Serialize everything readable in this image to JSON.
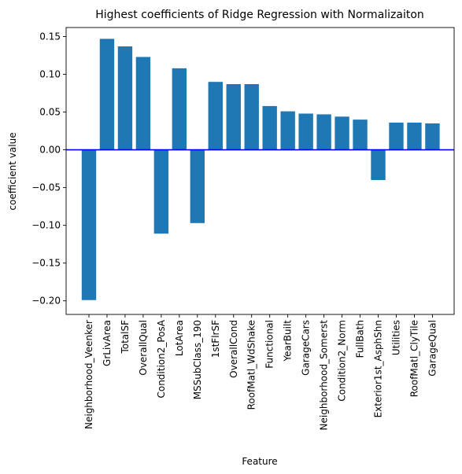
{
  "chart_data": {
    "type": "bar",
    "title": "Highest coefficients of Ridge Regression with Normalizaiton",
    "xlabel": "Feature",
    "ylabel": "coefficient value",
    "ylim": [
      -0.218,
      0.162
    ],
    "yticks": [
      -0.2,
      -0.15,
      -0.1,
      -0.05,
      0.0,
      0.05,
      0.1,
      0.15
    ],
    "ytick_labels": [
      "−0.20",
      "−0.15",
      "−0.10",
      "−0.05",
      "0.00",
      "0.05",
      "0.10",
      "0.15"
    ],
    "grid": false,
    "bar_color": "#1f77b4",
    "zero_line_color": "#0000ff",
    "categories": [
      "Neighborhood_Veenker",
      "GrLivArea",
      "TotalSF",
      "OverallQual",
      "Condition2_PosA",
      "LotArea",
      "MSSubClass_190",
      "1stFlrSF",
      "OverallCond",
      "RoofMatl_WdShake",
      "Functional",
      "YearBuilt",
      "GarageCars",
      "Neighborhood_Somerst",
      "Condition2_Norm",
      "FullBath",
      "Exterior1st_AsphShn",
      "Utilities",
      "RoofMatl_ClyTile",
      "GarageQual"
    ],
    "values": [
      -0.199,
      0.147,
      0.137,
      0.123,
      -0.111,
      0.108,
      -0.097,
      0.09,
      0.087,
      0.087,
      0.058,
      0.051,
      0.048,
      0.047,
      0.044,
      0.04,
      -0.04,
      0.036,
      0.036,
      0.035
    ]
  }
}
